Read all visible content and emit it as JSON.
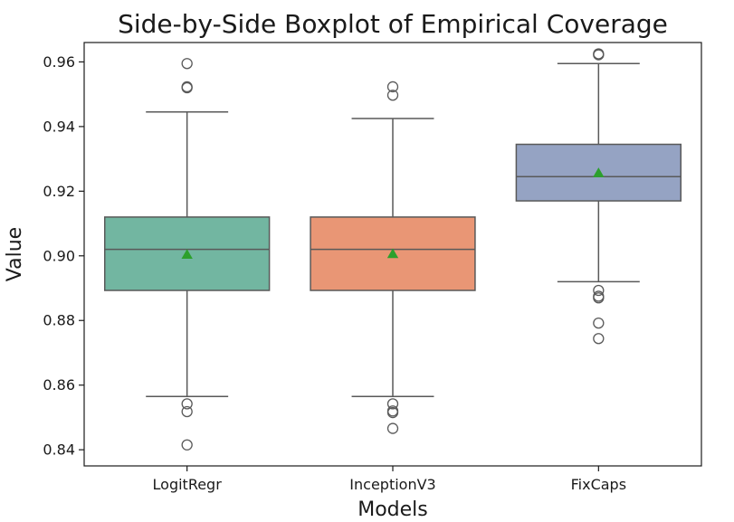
{
  "chart_data": {
    "type": "boxplot",
    "title": "Side-by-Side Boxplot of Empirical Coverage",
    "xlabel": "Models",
    "ylabel": "Value",
    "ylim": [
      0.835,
      0.966
    ],
    "yticks": [
      0.84,
      0.86,
      0.88,
      0.9,
      0.92,
      0.94,
      0.96
    ],
    "ytick_labels": [
      "0.84",
      "0.86",
      "0.88",
      "0.90",
      "0.92",
      "0.94",
      "0.96"
    ],
    "grid": false,
    "categories": [
      "LogitRegr",
      "InceptionV3",
      "FixCaps"
    ],
    "series": [
      {
        "category": "LogitRegr",
        "color": "#72b6a1",
        "whisker_low": 0.8565,
        "q1": 0.8893,
        "median": 0.902,
        "q3": 0.912,
        "whisker_high": 0.9445,
        "mean": 0.9003,
        "outliers": [
          0.9595,
          0.9523,
          0.952,
          0.8542,
          0.8518,
          0.8415
        ]
      },
      {
        "category": "InceptionV3",
        "color": "#e99675",
        "whisker_low": 0.8565,
        "q1": 0.8893,
        "median": 0.902,
        "q3": 0.912,
        "whisker_high": 0.9425,
        "mean": 0.9005,
        "outliers": [
          0.9523,
          0.9497,
          0.8542,
          0.852,
          0.8515,
          0.8466
        ]
      },
      {
        "category": "FixCaps",
        "color": "#95a3c3",
        "whisker_low": 0.892,
        "q1": 0.917,
        "median": 0.9245,
        "q3": 0.9345,
        "whisker_high": 0.9595,
        "mean": 0.9255,
        "outliers": [
          0.9625,
          0.9622,
          0.8893,
          0.8875,
          0.887,
          0.8792,
          0.8744
        ]
      }
    ],
    "mean_marker_color": "#2ca02c",
    "line_color": "#595959",
    "outlier_marker": "open-circle"
  }
}
